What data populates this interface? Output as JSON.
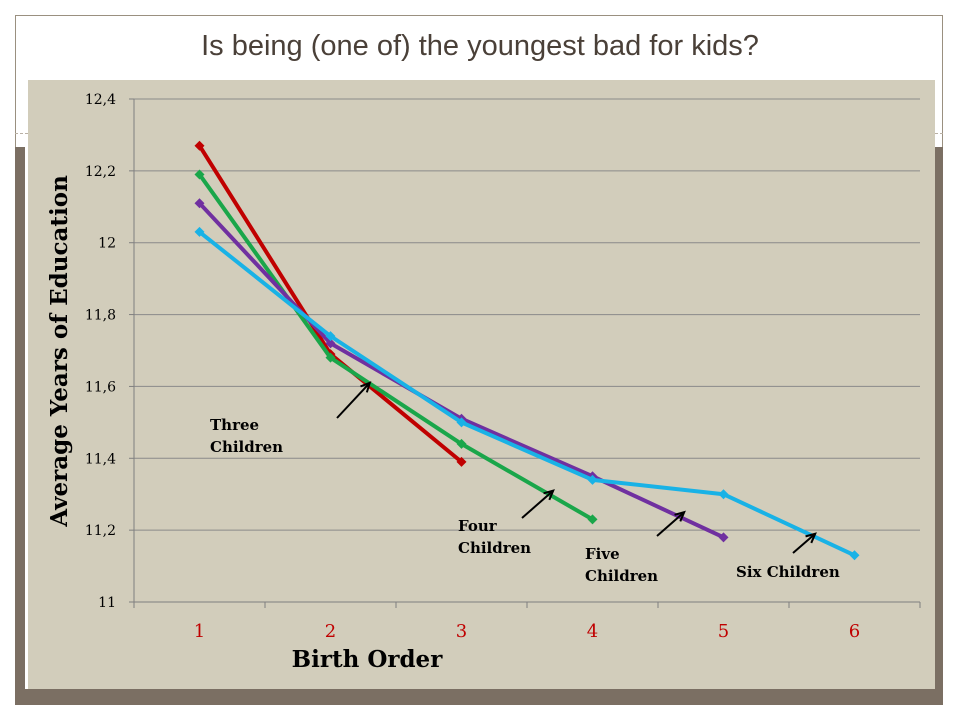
{
  "slide": {
    "title": "Is being (one of) the youngest bad for kids?"
  },
  "colors": {
    "background": "#d2cdbb",
    "frame_bar": "#7b6f63",
    "three_children": "#c00000",
    "four_children": "#1aa64a",
    "five_children": "#7030a0",
    "six_children": "#19b2e6"
  },
  "chart_data": {
    "type": "line",
    "title": "",
    "xlabel": "Birth Order",
    "ylabel": "Average Years of Education",
    "xlim": [
      0.5,
      6.5
    ],
    "ylim": [
      11,
      12.4
    ],
    "y_ticks": [
      {
        "value": 11,
        "label": "11"
      },
      {
        "value": 11.2,
        "label": "11,2"
      },
      {
        "value": 11.4,
        "label": "11,4"
      },
      {
        "value": 11.6,
        "label": "11,6"
      },
      {
        "value": 11.8,
        "label": "11,8"
      },
      {
        "value": 12,
        "label": "12"
      },
      {
        "value": 12.2,
        "label": "12,2"
      },
      {
        "value": 12.4,
        "label": "12,4"
      }
    ],
    "x_ticks": [
      {
        "value": 1,
        "label": "1"
      },
      {
        "value": 2,
        "label": "2"
      },
      {
        "value": 3,
        "label": "3"
      },
      {
        "value": 4,
        "label": "4"
      },
      {
        "value": 5,
        "label": "5"
      },
      {
        "value": 6,
        "label": "6"
      }
    ],
    "grid": "horizontal",
    "series": [
      {
        "key": "three",
        "color": "#c00000",
        "x": [
          1,
          2,
          3
        ],
        "y": [
          12.27,
          11.69,
          11.39
        ]
      },
      {
        "key": "four",
        "color": "#1aa64a",
        "x": [
          1,
          2,
          3,
          4
        ],
        "y": [
          12.19,
          11.68,
          11.44,
          11.23
        ]
      },
      {
        "key": "five",
        "color": "#7030a0",
        "x": [
          1,
          2,
          3,
          4,
          5
        ],
        "y": [
          12.11,
          11.72,
          11.51,
          11.35,
          11.18
        ]
      },
      {
        "key": "six",
        "color": "#19b2e6",
        "x": [
          1,
          2,
          3,
          4,
          5,
          6
        ],
        "y": [
          12.03,
          11.74,
          11.5,
          11.34,
          11.3,
          11.13
        ]
      }
    ],
    "annotations": [
      {
        "series": "three",
        "lines": [
          "Three",
          "Children"
        ],
        "arrow_to": [
          2.3,
          11.61
        ]
      },
      {
        "series": "four",
        "lines": [
          "Four",
          "Children"
        ],
        "arrow_to": [
          3.7,
          11.31
        ]
      },
      {
        "series": "five",
        "lines": [
          "Five",
          "Children"
        ],
        "arrow_to": [
          4.7,
          11.25
        ]
      },
      {
        "series": "six",
        "lines": [
          "Six Children"
        ],
        "arrow_to": [
          5.7,
          11.19
        ]
      }
    ]
  }
}
